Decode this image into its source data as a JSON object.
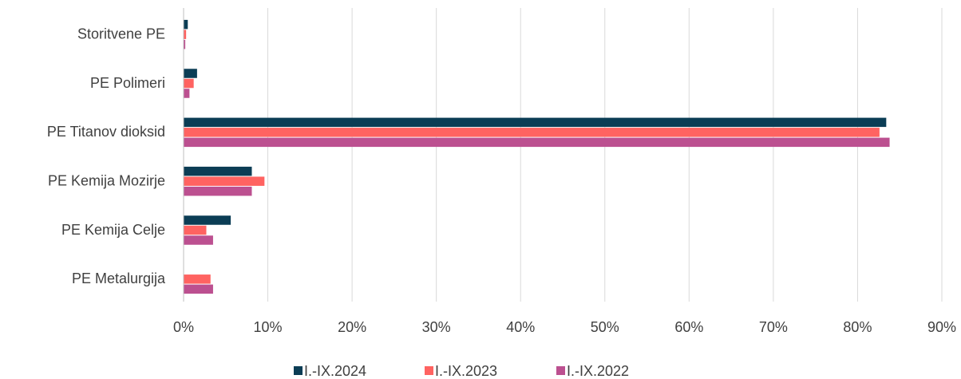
{
  "chart_data": {
    "type": "bar",
    "orientation": "horizontal",
    "categories": [
      "Storitvene PE",
      "PE Polimeri",
      "PE Titanov dioksid",
      "PE Kemija Mozirje",
      "PE Kemija Celje",
      "PE Metalurgija"
    ],
    "series": [
      {
        "name": "I.-IX.2024",
        "color": "#0b3d55",
        "values": [
          0.5,
          1.6,
          83.4,
          8.1,
          5.6,
          0
        ]
      },
      {
        "name": "I.-IX.2023",
        "color": "#ff6361",
        "values": [
          0.3,
          1.2,
          82.6,
          9.6,
          2.7,
          3.2
        ]
      },
      {
        "name": "I.-IX.2022",
        "color": "#bc5090",
        "values": [
          0.2,
          0.7,
          83.8,
          8.1,
          3.5,
          3.5
        ]
      }
    ],
    "xlim": [
      0,
      90
    ],
    "xticks": [
      {
        "value": 0,
        "label": "0%"
      },
      {
        "value": 10,
        "label": "10%"
      },
      {
        "value": 20,
        "label": "20%"
      },
      {
        "value": 30,
        "label": "30%"
      },
      {
        "value": 40,
        "label": "40%"
      },
      {
        "value": 50,
        "label": "50%"
      },
      {
        "value": 60,
        "label": "60%"
      },
      {
        "value": 70,
        "label": "70%"
      },
      {
        "value": 80,
        "label": "80%"
      },
      {
        "value": 90,
        "label": "90%"
      }
    ],
    "grid": true,
    "legend": "bottom"
  }
}
